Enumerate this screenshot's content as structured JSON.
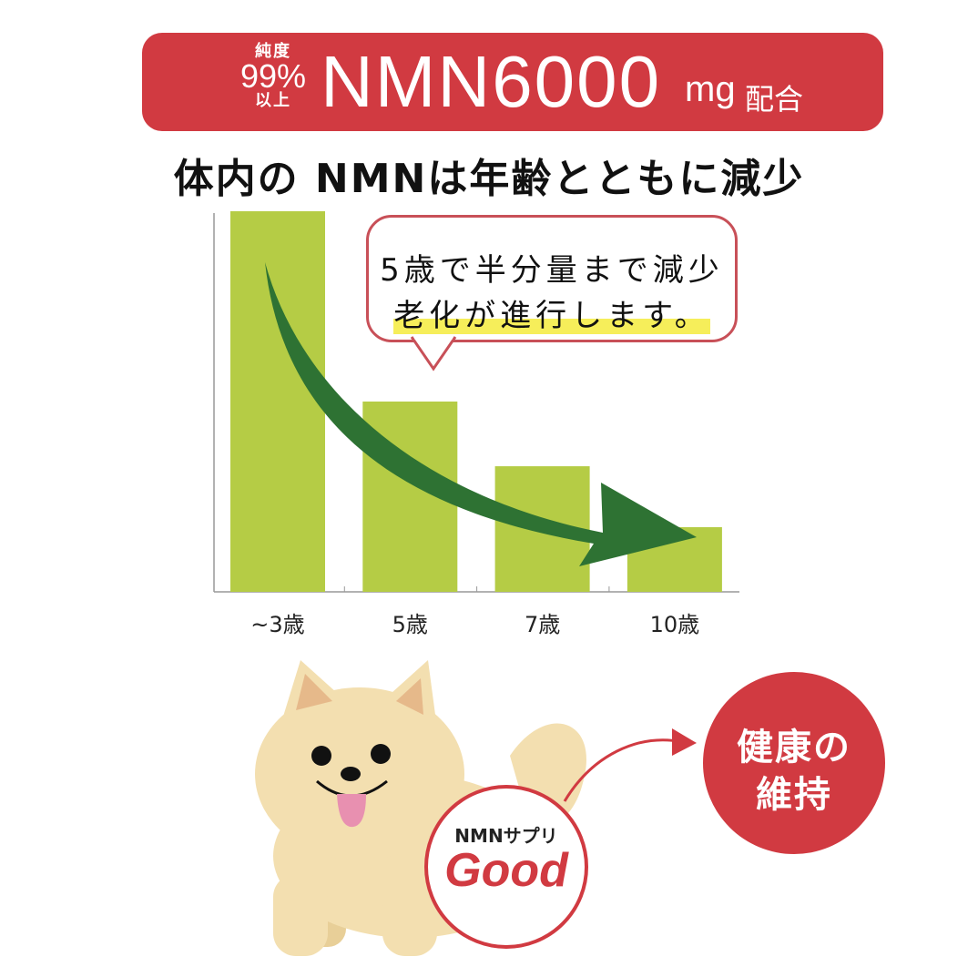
{
  "banner": {
    "purity_top": "純度",
    "purity_value": "99%",
    "purity_bottom": "以上",
    "product": "NMN6000",
    "unit": "mg",
    "suffix": "配合"
  },
  "headline": "体内の NMNは年齢とともに減少",
  "callout": {
    "line1": "5歳で半分量まで減少",
    "line2": "老化が進行します。"
  },
  "chart_data": {
    "type": "bar",
    "categories": [
      "~3歳",
      "5歳",
      "7歳",
      "10歳"
    ],
    "values": [
      100,
      50,
      33,
      17
    ],
    "title": "",
    "xlabel": "",
    "ylabel": "",
    "ylim": [
      0,
      100
    ],
    "grid": false,
    "colors": {
      "bar": "#b5cc45",
      "arrow": "#2e7233"
    }
  },
  "badge": {
    "label": "NMNサプリ",
    "word": "Good"
  },
  "result": {
    "line1": "健康の",
    "line2": "維持"
  },
  "colors": {
    "brand_red": "#d13a41",
    "highlight": "#f6ee5a"
  }
}
